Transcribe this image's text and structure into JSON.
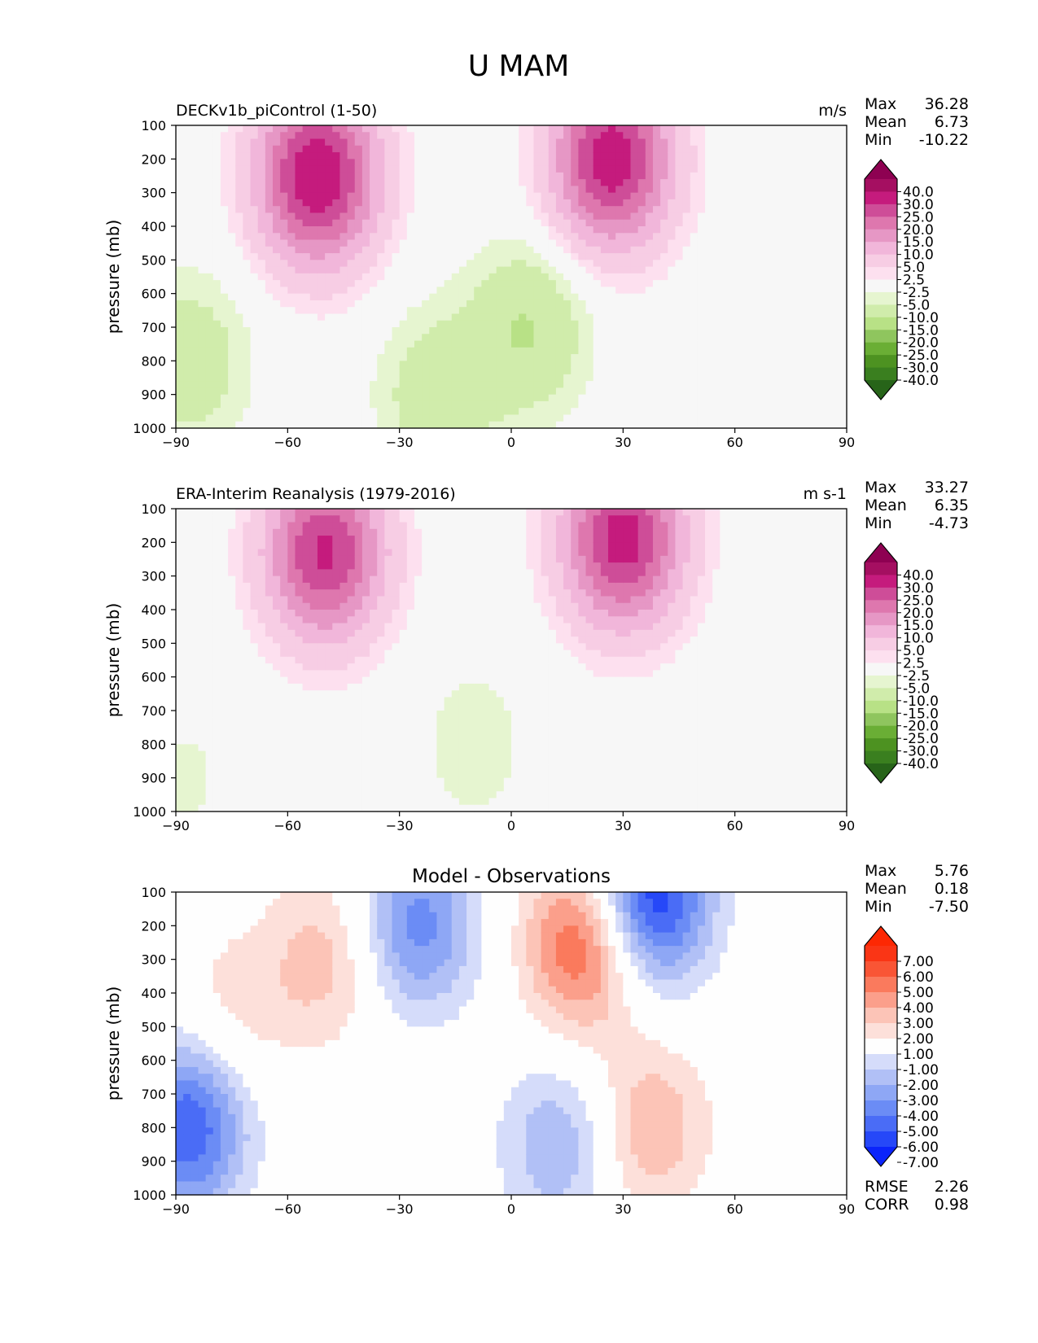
{
  "title": "U MAM",
  "chart_data": [
    {
      "type": "heatmap",
      "panel": "model",
      "left_title": "DECKv1b_piControl (1-50)",
      "units": "m/s",
      "ylabel": "pressure (mb)",
      "xlim": [
        -90,
        90
      ],
      "ylim": [
        1000,
        100
      ],
      "xticks": [
        "−90",
        "−60",
        "−30",
        "0",
        "30",
        "60",
        "90"
      ],
      "yticks": [
        "100",
        "200",
        "300",
        "400",
        "500",
        "600",
        "700",
        "800",
        "900",
        "1000"
      ],
      "stats": [
        {
          "label": "Max",
          "value": "36.28"
        },
        {
          "label": "Mean",
          "value": "6.73"
        },
        {
          "label": "Min",
          "value": "-10.22"
        }
      ],
      "colorbar": {
        "extend": "both",
        "levels": [
          -40,
          -30,
          -25,
          -20,
          -15,
          -10,
          -5,
          -2.5,
          2.5,
          5,
          10,
          15,
          20,
          25,
          30,
          40
        ],
        "labels": [
          "40.0",
          "30.0",
          "25.0",
          "20.0",
          "15.0",
          "10.0",
          "5.0",
          "2.5",
          "-2.5",
          "-5.0",
          "-10.0",
          "-15.0",
          "-20.0",
          "-25.0",
          "-30.0",
          "-40.0"
        ],
        "colors": [
          "#276419",
          "#3a7f1f",
          "#4d9221",
          "#6aae35",
          "#8fc55e",
          "#b8e186",
          "#d0ecab",
          "#e6f5d0",
          "#f7f7f7",
          "#fde0ef",
          "#f7cde4",
          "#f1b6da",
          "#e697c5",
          "#de77ae",
          "#ce4d98",
          "#c51b7d",
          "#a50f61",
          "#8e0152"
        ]
      },
      "features": [
        {
          "lat": -52,
          "p": 250,
          "value": 36
        },
        {
          "lat": 27,
          "p": 200,
          "value": 34
        },
        {
          "lat": 5,
          "p": 700,
          "value": -10
        },
        {
          "lat": -20,
          "p": 900,
          "value": -8
        },
        {
          "lat": -86,
          "p": 800,
          "value": -8
        }
      ]
    },
    {
      "type": "heatmap",
      "panel": "observations",
      "left_title": "ERA-Interim Reanalysis (1979-2016)",
      "units": "m s-1",
      "ylabel": "pressure (mb)",
      "xlim": [
        -90,
        90
      ],
      "ylim": [
        1000,
        100
      ],
      "xticks": [
        "−90",
        "−60",
        "−30",
        "0",
        "30",
        "60",
        "90"
      ],
      "yticks": [
        "100",
        "200",
        "300",
        "400",
        "500",
        "600",
        "700",
        "800",
        "900",
        "1000"
      ],
      "stats": [
        {
          "label": "Max",
          "value": "33.27"
        },
        {
          "label": "Mean",
          "value": "6.35"
        },
        {
          "label": "Min",
          "value": "-4.73"
        }
      ],
      "colorbar": {
        "extend": "both",
        "levels": [
          -40,
          -30,
          -25,
          -20,
          -15,
          -10,
          -5,
          -2.5,
          2.5,
          5,
          10,
          15,
          20,
          25,
          30,
          40
        ],
        "labels": [
          "40.0",
          "30.0",
          "25.0",
          "20.0",
          "15.0",
          "10.0",
          "5.0",
          "2.5",
          "-2.5",
          "-5.0",
          "-10.0",
          "-15.0",
          "-20.0",
          "-25.0",
          "-30.0",
          "-40.0"
        ],
        "colors": [
          "#276419",
          "#3a7f1f",
          "#4d9221",
          "#6aae35",
          "#8fc55e",
          "#b8e186",
          "#d0ecab",
          "#e6f5d0",
          "#f7f7f7",
          "#fde0ef",
          "#f7cde4",
          "#f1b6da",
          "#e697c5",
          "#de77ae",
          "#ce4d98",
          "#c51b7d",
          "#a50f61",
          "#8e0152"
        ]
      },
      "features": [
        {
          "lat": -50,
          "p": 230,
          "value": 31
        },
        {
          "lat": 30,
          "p": 190,
          "value": 33
        },
        {
          "lat": -10,
          "p": 800,
          "value": -4
        },
        {
          "lat": -88,
          "p": 900,
          "value": -3
        }
      ]
    },
    {
      "type": "heatmap",
      "panel": "difference",
      "center_title": "Model - Observations",
      "ylabel": "pressure (mb)",
      "xlim": [
        -90,
        90
      ],
      "ylim": [
        1000,
        100
      ],
      "xticks": [
        "−90",
        "−60",
        "−30",
        "0",
        "30",
        "60",
        "90"
      ],
      "yticks": [
        "100",
        "200",
        "300",
        "400",
        "500",
        "600",
        "700",
        "800",
        "900",
        "1000"
      ],
      "stats": [
        {
          "label": "Max",
          "value": "5.76"
        },
        {
          "label": "Mean",
          "value": "0.18"
        },
        {
          "label": "Min",
          "value": "-7.50"
        }
      ],
      "bottom_stats": [
        {
          "label": "RMSE",
          "value": "2.26"
        },
        {
          "label": "CORR",
          "value": "0.98"
        }
      ],
      "colorbar": {
        "extend": "both",
        "levels": [
          -7,
          -6,
          -5,
          -4,
          -3,
          -2,
          -1,
          1,
          2,
          3,
          4,
          5,
          6,
          7
        ],
        "labels": [
          "7.00",
          "6.00",
          "5.00",
          "4.00",
          "3.00",
          "2.00",
          "1.00",
          "-1.00",
          "-2.00",
          "-3.00",
          "-4.00",
          "-5.00",
          "-6.00",
          "-7.00"
        ],
        "colors": [
          "#0b24fb",
          "#2648f8",
          "#4a6cf6",
          "#6b8cf5",
          "#8ea7f5",
          "#b1c0f6",
          "#d5dcfa",
          "#fefefe",
          "#fde0da",
          "#fcc4b7",
          "#fb9f8b",
          "#fa7a5d",
          "#f95535",
          "#fa3515",
          "#fd2803"
        ]
      },
      "features": [
        {
          "lat": 20,
          "p": 250,
          "value": 5.8
        },
        {
          "lat": 37,
          "p": 120,
          "value": -7.5
        },
        {
          "lat": -25,
          "p": 200,
          "value": -4.5
        },
        {
          "lat": -50,
          "p": 300,
          "value": 2.5
        },
        {
          "lat": 13,
          "p": 850,
          "value": -3
        },
        {
          "lat": 37,
          "p": 800,
          "value": 3
        },
        {
          "lat": -75,
          "p": 450,
          "value": 1.5
        },
        {
          "lat": -87,
          "p": 800,
          "value": -6
        }
      ]
    }
  ]
}
